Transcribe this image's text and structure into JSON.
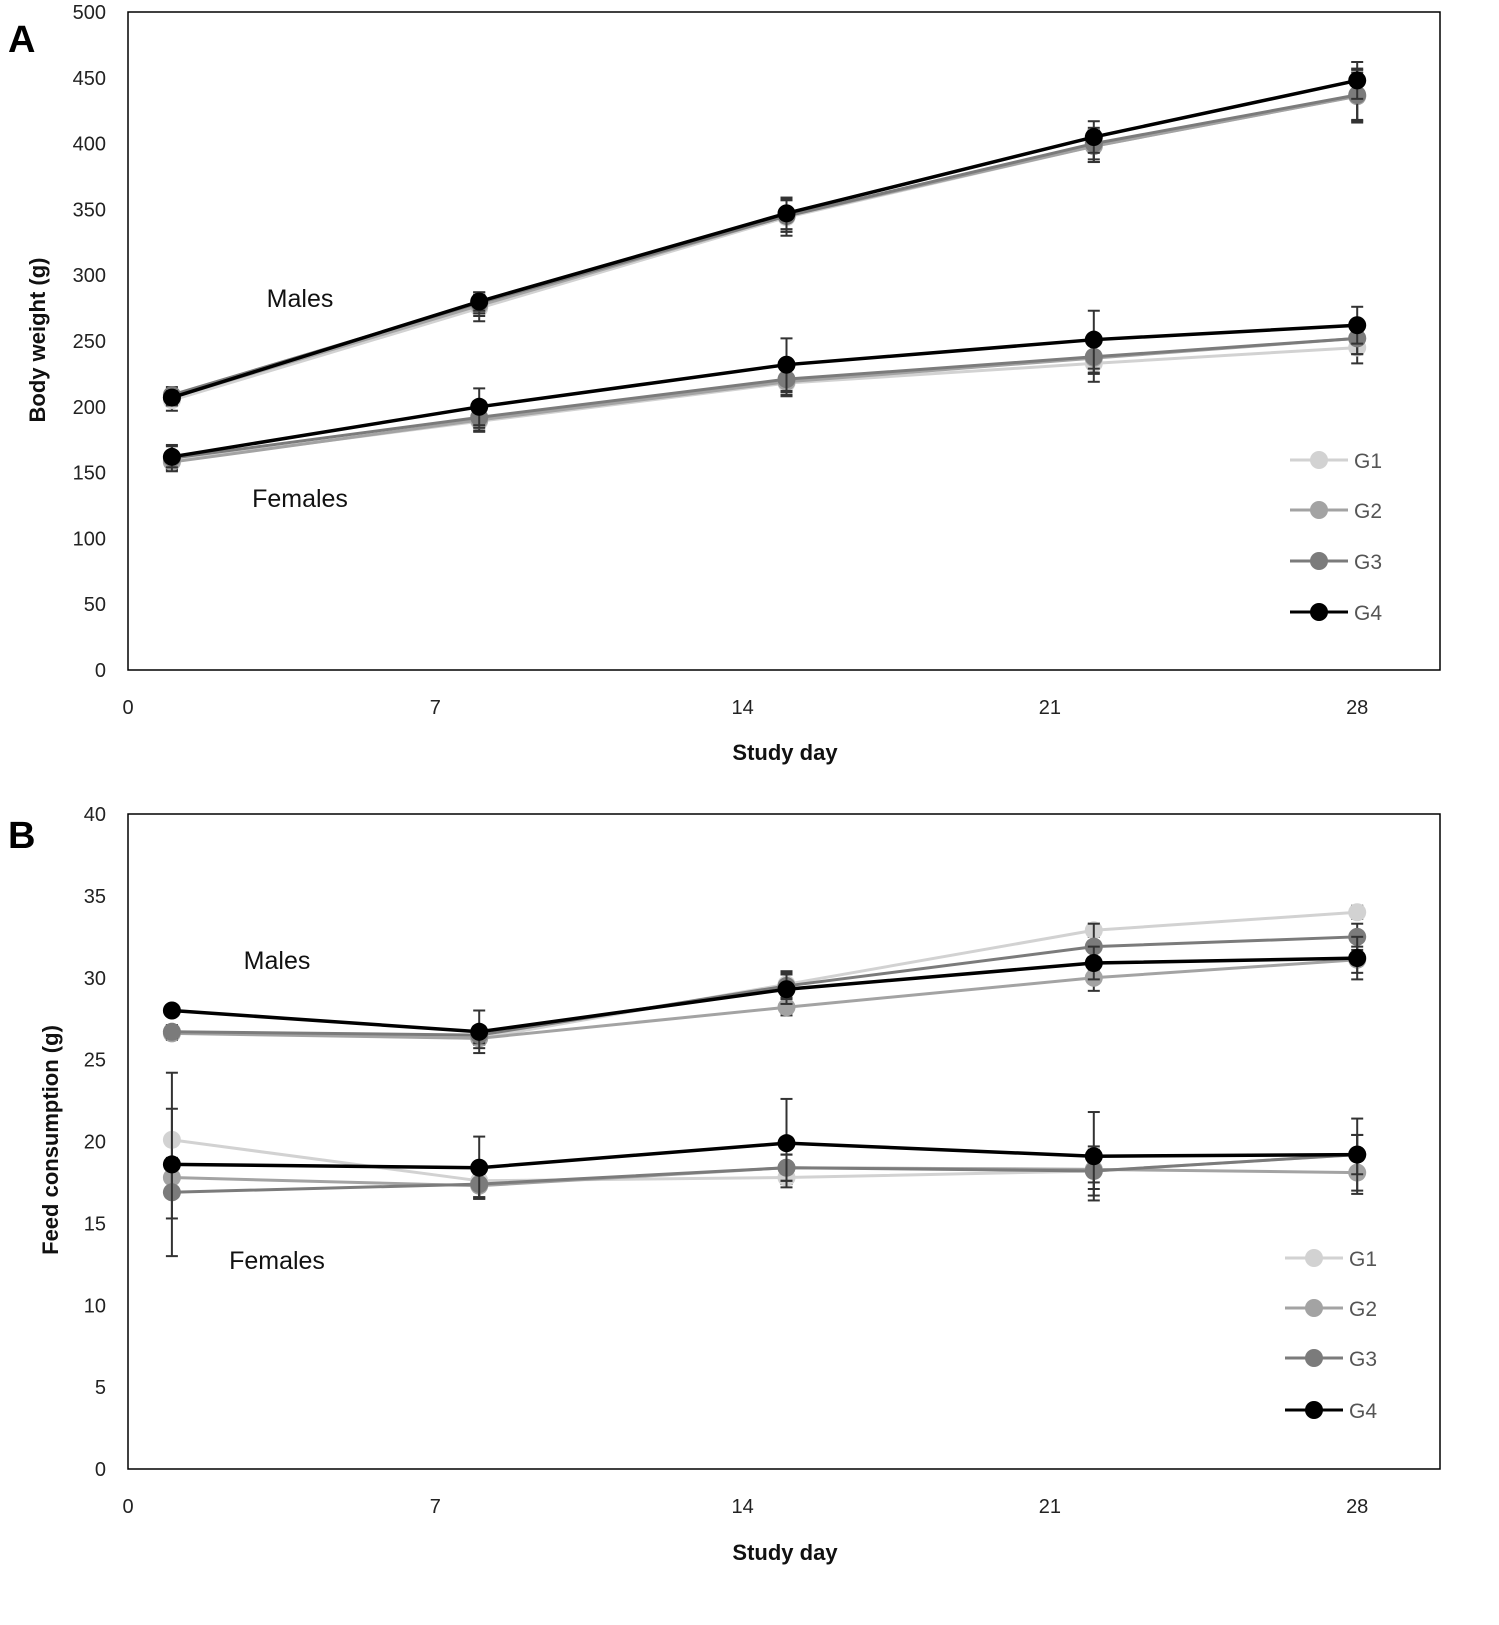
{
  "colors": {
    "G1": "#d2d2d2",
    "G2": "#a3a3a3",
    "G3": "#7b7b7b",
    "G4": "#000000"
  },
  "chart_data": [
    {
      "type": "line",
      "panel": "A",
      "xlabel": "Study day",
      "ylabel": "Body weight (g)",
      "xlim": [
        0,
        30
      ],
      "ylim": [
        0,
        500
      ],
      "xticks": [
        0,
        7,
        14,
        21,
        28
      ],
      "yticks": [
        0,
        50,
        100,
        150,
        200,
        250,
        300,
        350,
        400,
        450,
        500
      ],
      "grid": false,
      "legend": "bottom-right",
      "legend_entries": [
        "G1",
        "G2",
        "G3",
        "G4"
      ],
      "annotations": [
        {
          "text": "Males"
        },
        {
          "text": "Females"
        }
      ],
      "x": [
        1,
        8,
        15,
        22,
        28
      ],
      "series": [
        {
          "name": "G1",
          "group": "Males",
          "values": [
            205,
            275,
            344,
            398,
            436
          ],
          "error": [
            8,
            10,
            14,
            12,
            20
          ]
        },
        {
          "name": "G2",
          "group": "Males",
          "values": [
            207,
            277,
            345,
            398,
            436
          ],
          "error": [
            6,
            8,
            12,
            12,
            18
          ]
        },
        {
          "name": "G3",
          "group": "Males",
          "values": [
            209,
            279,
            345,
            400,
            437
          ],
          "error": [
            6,
            8,
            12,
            12,
            20
          ]
        },
        {
          "name": "G4",
          "group": "Males",
          "values": [
            207,
            280,
            347,
            405,
            448
          ],
          "error": [
            5,
            7,
            12,
            12,
            14
          ]
        },
        {
          "name": "G1",
          "group": "Females",
          "values": [
            159,
            189,
            218,
            233,
            245
          ],
          "error": [
            6,
            8,
            10,
            14,
            12
          ]
        },
        {
          "name": "G2",
          "group": "Females",
          "values": [
            158,
            190,
            219,
            237,
            252
          ],
          "error": [
            6,
            8,
            10,
            12,
            12
          ]
        },
        {
          "name": "G3",
          "group": "Females",
          "values": [
            161,
            192,
            221,
            238,
            252
          ],
          "error": [
            10,
            8,
            10,
            12,
            12
          ]
        },
        {
          "name": "G4",
          "group": "Females",
          "values": [
            162,
            200,
            232,
            251,
            262
          ],
          "error": [
            8,
            14,
            20,
            22,
            14
          ]
        }
      ]
    },
    {
      "type": "line",
      "panel": "B",
      "xlabel": "Study day",
      "ylabel": "Feed consumption (g)",
      "xlim": [
        0,
        30
      ],
      "ylim": [
        0,
        40
      ],
      "xticks": [
        0,
        7,
        14,
        21,
        28
      ],
      "yticks": [
        0,
        5,
        10,
        15,
        20,
        25,
        30,
        35,
        40
      ],
      "grid": false,
      "legend": "bottom-right",
      "legend_entries": [
        "G1",
        "G2",
        "G3",
        "G4"
      ],
      "annotations": [
        {
          "text": "Males"
        },
        {
          "text": "Females"
        }
      ],
      "x": [
        1,
        8,
        15,
        22,
        28
      ],
      "series": [
        {
          "name": "G1",
          "group": "Males",
          "values": [
            26.7,
            26.3,
            29.6,
            32.9,
            34.0
          ],
          "error": [
            0.4,
            0.4,
            0.8,
            0.4,
            0.4
          ]
        },
        {
          "name": "G2",
          "group": "Males",
          "values": [
            26.6,
            26.3,
            28.2,
            30.0,
            31.1
          ],
          "error": [
            0.4,
            0.6,
            0.5,
            0.8,
            0.8
          ]
        },
        {
          "name": "G3",
          "group": "Males",
          "values": [
            26.7,
            26.5,
            29.5,
            31.9,
            32.5
          ],
          "error": [
            0.4,
            0.5,
            0.8,
            1.4,
            0.8
          ]
        },
        {
          "name": "G4",
          "group": "Males",
          "values": [
            28.0,
            26.7,
            29.3,
            30.9,
            31.2
          ],
          "error": [
            0.3,
            1.3,
            0.9,
            1.0,
            1.3
          ]
        },
        {
          "name": "G1",
          "group": "Females",
          "values": [
            20.1,
            17.6,
            17.8,
            18.2,
            19.2
          ],
          "error": [
            1.9,
            1.0,
            0.4,
            0.7,
            1.2
          ]
        },
        {
          "name": "G2",
          "group": "Females",
          "values": [
            17.8,
            17.3,
            18.4,
            18.3,
            18.1
          ],
          "error": [
            1.2,
            0.8,
            0.8,
            1.2,
            1.3
          ]
        },
        {
          "name": "G3",
          "group": "Females",
          "values": [
            16.9,
            17.4,
            18.4,
            18.2,
            19.2
          ],
          "error": [
            1.6,
            0.8,
            0.8,
            1.5,
            1.2
          ]
        },
        {
          "name": "G4",
          "group": "Females",
          "values": [
            18.6,
            18.4,
            19.9,
            19.1,
            19.2
          ],
          "error": [
            5.6,
            1.9,
            2.7,
            2.7,
            2.2
          ]
        }
      ]
    }
  ]
}
